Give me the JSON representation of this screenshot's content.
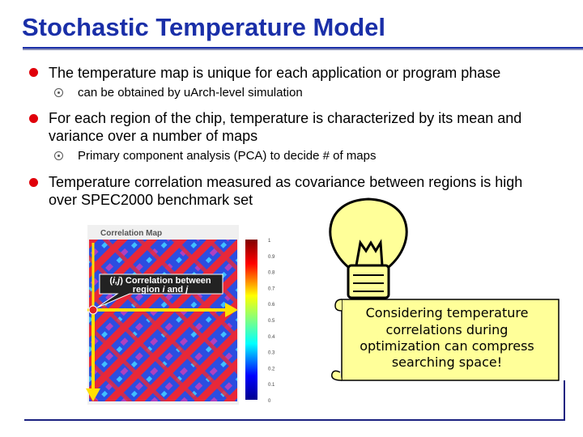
{
  "title": "Stochastic Temperature Model",
  "bullets": [
    {
      "text": "The temperature map is unique for each application or program phase",
      "sub": "can be obtained by uArch-level simulation"
    },
    {
      "text": "For each region of the chip, temperature is characterized by its mean and variance over a number of maps",
      "sub": "Primary component analysis (PCA) to decide # of maps"
    },
    {
      "text": "Temperature correlation measured as covariance between regions is high over SPEC2000 benchmark set"
    }
  ],
  "figure": {
    "title": "Correlation Map",
    "colorbar_ticks": [
      1,
      0.9,
      0.8,
      0.7,
      0.6,
      0.5,
      0.4,
      0.3,
      0.2,
      0.1,
      0
    ]
  },
  "callout": {
    "open": "(",
    "ij": "i,j",
    "text": ") Correlation between",
    "region": "region",
    "i": "i",
    "and": "and",
    "j": "j"
  },
  "note": [
    "Considering temperature",
    "correlations during",
    "optimization can compress",
    "searching space!"
  ]
}
